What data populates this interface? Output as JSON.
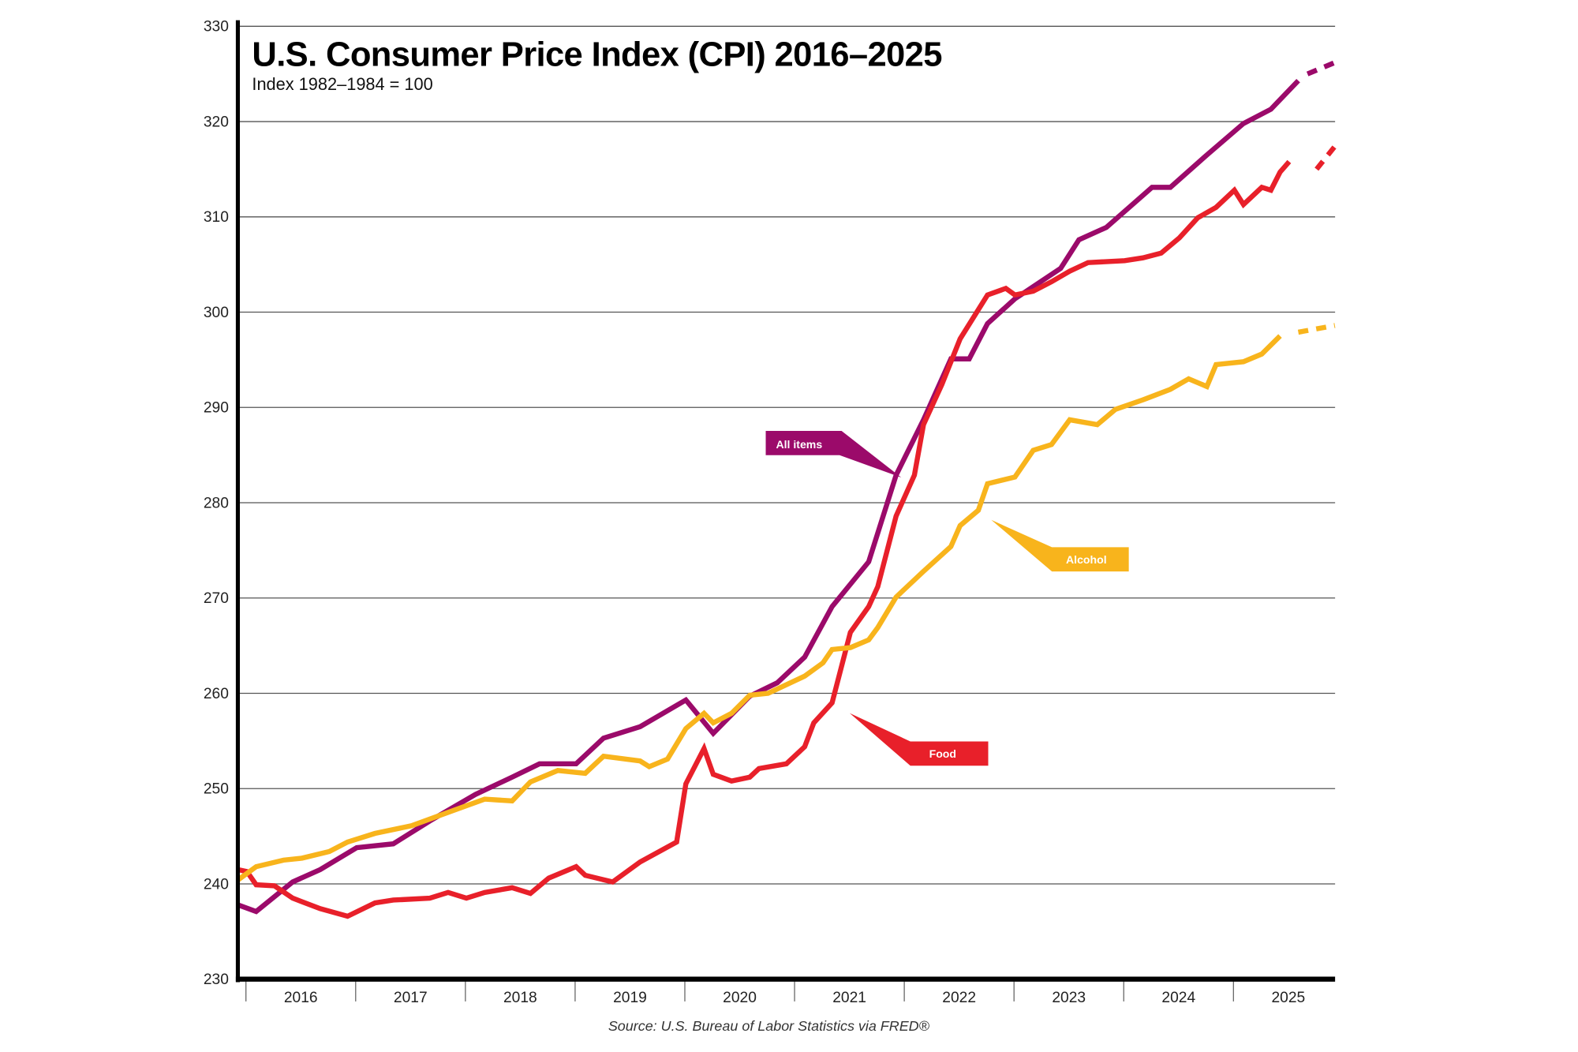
{
  "chart_data": {
    "type": "line",
    "title": "U.S. Consumer Price Index (CPI) 2016–2025",
    "subtitle": "Index 1982–1984 = 100",
    "source": "Source: U.S. Bureau of Labor Statistics via FRED®",
    "xlabel": "",
    "ylabel": "",
    "ylim": [
      230,
      330
    ],
    "yticks": [
      230,
      240,
      250,
      260,
      270,
      280,
      290,
      300,
      310,
      320,
      330
    ],
    "xticks": [
      "2016",
      "2017",
      "2018",
      "2019",
      "2020",
      "2021",
      "2022",
      "2023",
      "2024",
      "2025"
    ],
    "grid": "horizontal",
    "legend": "callout labels",
    "series": [
      {
        "name": "All items",
        "color": "#9b0a6a",
        "points": [
          [
            "2016-01",
            237.8
          ],
          [
            "2016-03",
            237.1
          ],
          [
            "2016-07",
            240.2
          ],
          [
            "2016-10",
            241.5
          ],
          [
            "2017-02",
            243.8
          ],
          [
            "2017-06",
            244.2
          ],
          [
            "2017-10",
            246.6
          ],
          [
            "2018-03",
            249.4
          ],
          [
            "2018-07",
            251.2
          ],
          [
            "2018-10",
            252.6
          ],
          [
            "2019-02",
            252.6
          ],
          [
            "2019-05",
            255.3
          ],
          [
            "2019-09",
            256.5
          ],
          [
            "2020-02",
            259.3
          ],
          [
            "2020-05",
            255.8
          ],
          [
            "2020-09",
            259.7
          ],
          [
            "2020-12",
            261.1
          ],
          [
            "2021-03",
            263.8
          ],
          [
            "2021-06",
            269.1
          ],
          [
            "2021-10",
            273.8
          ],
          [
            "2022-01",
            282.9
          ],
          [
            "2022-04",
            288.7
          ],
          [
            "2022-07",
            295.1
          ],
          [
            "2022-09",
            295.1
          ],
          [
            "2022-11",
            298.8
          ],
          [
            "2023-02",
            301.4
          ],
          [
            "2023-07",
            304.6
          ],
          [
            "2023-09",
            307.6
          ],
          [
            "2023-12",
            308.9
          ],
          [
            "2024-05",
            313.1
          ],
          [
            "2024-07",
            313.1
          ],
          [
            "2024-11",
            316.5
          ],
          [
            "2025-03",
            319.8
          ],
          [
            "2025-06",
            321.3
          ],
          [
            "2025-09",
            324.3
          ]
        ],
        "projection": [
          [
            "2025-10",
            325.0
          ],
          [
            "2026-01",
            326.2
          ]
        ]
      },
      {
        "name": "Food",
        "color": "#e8202a",
        "points": [
          [
            "2016-01",
            241.5
          ],
          [
            "2016-02",
            241.3
          ],
          [
            "2016-03",
            239.9
          ],
          [
            "2016-05",
            239.8
          ],
          [
            "2016-07",
            238.5
          ],
          [
            "2016-10",
            237.4
          ],
          [
            "2017-01",
            236.6
          ],
          [
            "2017-04",
            238.0
          ],
          [
            "2017-06",
            238.3
          ],
          [
            "2017-10",
            238.5
          ],
          [
            "2017-12",
            239.1
          ],
          [
            "2018-02",
            238.5
          ],
          [
            "2018-04",
            239.1
          ],
          [
            "2018-07",
            239.6
          ],
          [
            "2018-09",
            239.0
          ],
          [
            "2018-11",
            240.6
          ],
          [
            "2019-02",
            241.8
          ],
          [
            "2019-03",
            240.9
          ],
          [
            "2019-06",
            240.2
          ],
          [
            "2019-09",
            242.3
          ],
          [
            "2020-01",
            244.4
          ],
          [
            "2020-02",
            250.5
          ],
          [
            "2020-04",
            254.2
          ],
          [
            "2020-05",
            251.5
          ],
          [
            "2020-07",
            250.8
          ],
          [
            "2020-09",
            251.2
          ],
          [
            "2020-10",
            252.1
          ],
          [
            "2021-01",
            252.6
          ],
          [
            "2021-03",
            254.4
          ],
          [
            "2021-04",
            256.9
          ],
          [
            "2021-06",
            259.0
          ],
          [
            "2021-08",
            266.4
          ],
          [
            "2021-10",
            269.1
          ],
          [
            "2021-11",
            271.2
          ],
          [
            "2022-01",
            278.6
          ],
          [
            "2022-03",
            282.9
          ],
          [
            "2022-04",
            288.2
          ],
          [
            "2022-06",
            292.4
          ],
          [
            "2022-08",
            297.2
          ],
          [
            "2022-11",
            301.8
          ],
          [
            "2023-01",
            302.5
          ],
          [
            "2023-02",
            301.8
          ],
          [
            "2023-04",
            302.2
          ],
          [
            "2023-06",
            303.2
          ],
          [
            "2023-08",
            304.3
          ],
          [
            "2023-10",
            305.2
          ],
          [
            "2024-02",
            305.4
          ],
          [
            "2024-04",
            305.7
          ],
          [
            "2024-06",
            306.2
          ],
          [
            "2024-08",
            307.8
          ],
          [
            "2024-10",
            309.9
          ],
          [
            "2024-12",
            311.0
          ],
          [
            "2025-02",
            312.8
          ],
          [
            "2025-03",
            311.3
          ],
          [
            "2025-05",
            313.1
          ],
          [
            "2025-06",
            312.8
          ],
          [
            "2025-07",
            314.7
          ],
          [
            "2025-08",
            315.8
          ]
        ],
        "projection": [
          [
            "2025-11",
            315.0
          ],
          [
            "2026-01",
            317.4
          ]
        ]
      },
      {
        "name": "Alcohol",
        "color": "#f8b41c",
        "points": [
          [
            "2016-01",
            240.4
          ],
          [
            "2016-03",
            241.8
          ],
          [
            "2016-06",
            242.5
          ],
          [
            "2016-08",
            242.7
          ],
          [
            "2016-11",
            243.4
          ],
          [
            "2017-01",
            244.4
          ],
          [
            "2017-04",
            245.3
          ],
          [
            "2017-08",
            246.1
          ],
          [
            "2017-12",
            247.5
          ],
          [
            "2018-04",
            248.9
          ],
          [
            "2018-07",
            248.7
          ],
          [
            "2018-09",
            250.7
          ],
          [
            "2018-12",
            251.9
          ],
          [
            "2019-03",
            251.6
          ],
          [
            "2019-05",
            253.4
          ],
          [
            "2019-09",
            252.9
          ],
          [
            "2019-10",
            252.3
          ],
          [
            "2019-12",
            253.1
          ],
          [
            "2020-02",
            256.3
          ],
          [
            "2020-04",
            257.9
          ],
          [
            "2020-05",
            256.9
          ],
          [
            "2020-07",
            257.9
          ],
          [
            "2020-09",
            259.8
          ],
          [
            "2020-11",
            260.0
          ],
          [
            "2021-03",
            261.8
          ],
          [
            "2021-05",
            263.2
          ],
          [
            "2021-06",
            264.6
          ],
          [
            "2021-08",
            264.8
          ],
          [
            "2021-10",
            265.6
          ],
          [
            "2021-11",
            266.9
          ],
          [
            "2022-01",
            270.1
          ],
          [
            "2022-04",
            272.8
          ],
          [
            "2022-07",
            275.4
          ],
          [
            "2022-08",
            277.6
          ],
          [
            "2022-10",
            279.2
          ],
          [
            "2022-11",
            282.0
          ],
          [
            "2023-02",
            282.7
          ],
          [
            "2023-04",
            285.5
          ],
          [
            "2023-06",
            286.1
          ],
          [
            "2023-08",
            288.7
          ],
          [
            "2023-11",
            288.2
          ],
          [
            "2024-01",
            289.8
          ],
          [
            "2024-04",
            290.8
          ],
          [
            "2024-07",
            291.9
          ],
          [
            "2024-09",
            293.0
          ],
          [
            "2024-11",
            292.2
          ],
          [
            "2024-12",
            294.5
          ],
          [
            "2025-03",
            294.8
          ],
          [
            "2025-05",
            295.6
          ],
          [
            "2025-07",
            297.5
          ]
        ],
        "projection": [
          [
            "2025-09",
            297.9
          ],
          [
            "2026-01",
            298.6
          ]
        ]
      }
    ]
  }
}
